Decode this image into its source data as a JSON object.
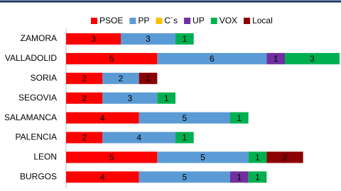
{
  "chart_data": {
    "type": "stacked-bar-horizontal",
    "categories": [
      "ZAMORA",
      "VALLADOLID",
      "SORIA",
      "SEGOVIA",
      "SALAMANCA",
      "PALENCIA",
      "LEON",
      "BURGOS"
    ],
    "series": [
      {
        "name": "PSOE",
        "color": "#ff0000",
        "values": [
          3,
          5,
          2,
          2,
          4,
          2,
          5,
          4
        ]
      },
      {
        "name": "PP",
        "color": "#5b9bd5",
        "values": [
          3,
          6,
          2,
          3,
          5,
          4,
          5,
          5
        ]
      },
      {
        "name": "C´s",
        "color": "#ffc000",
        "values": [
          null,
          null,
          null,
          null,
          null,
          null,
          null,
          null
        ]
      },
      {
        "name": "UP",
        "color": "#7030a0",
        "values": [
          null,
          1,
          null,
          null,
          null,
          null,
          null,
          1
        ]
      },
      {
        "name": "VOX",
        "color": "#00b050",
        "values": [
          1,
          3,
          null,
          1,
          1,
          1,
          1,
          1
        ]
      },
      {
        "name": "Local",
        "color": "#8b0000",
        "values": [
          null,
          null,
          1,
          null,
          null,
          null,
          2,
          null
        ]
      }
    ],
    "xlim": [
      0,
      15
    ],
    "legend": "top"
  }
}
